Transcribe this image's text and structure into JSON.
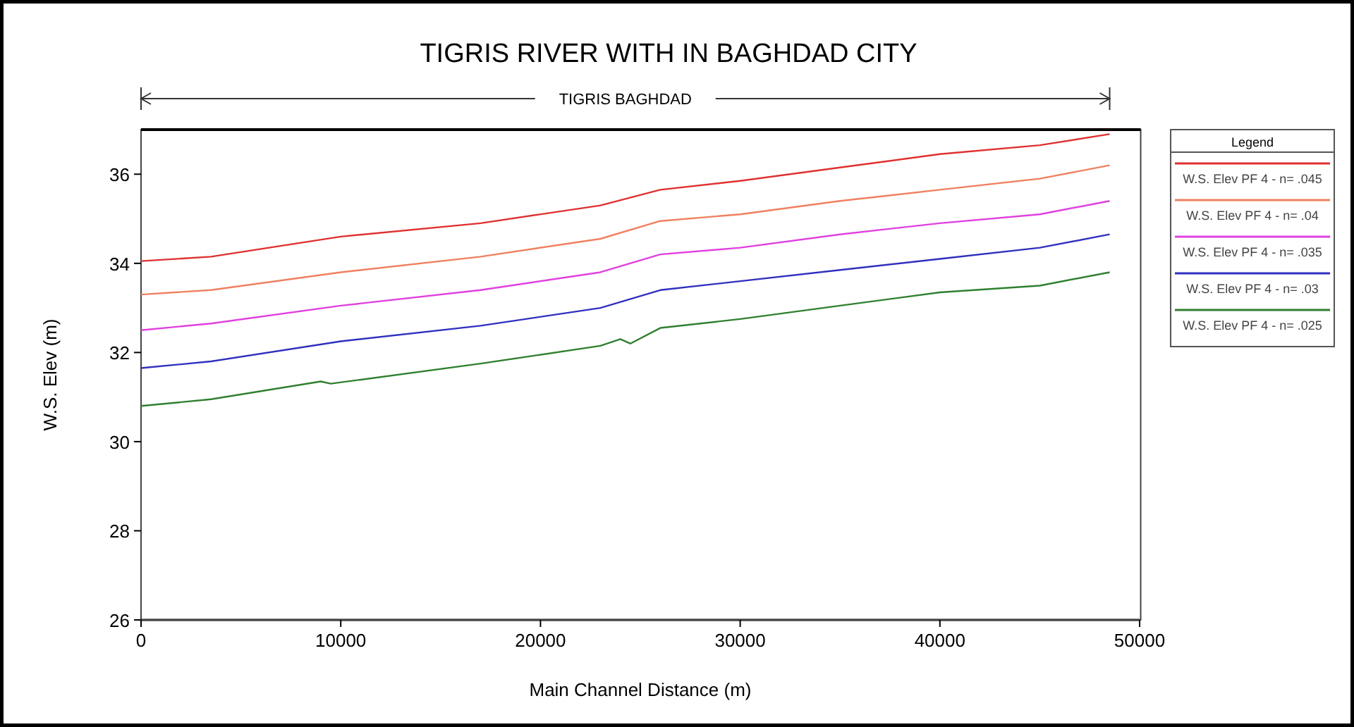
{
  "chart_data": {
    "type": "line",
    "title": "TIGRIS RIVER WITH IN BAGHDAD CITY",
    "xlabel": "Main Channel Distance (m)",
    "ylabel": "W.S. Elev (m)",
    "legend_title": "Legend",
    "legend": "right",
    "grid": false,
    "line_style": "solid",
    "marker": "none",
    "annotations": [
      "TIGRIS BAGHDAD"
    ],
    "xlim": [
      0,
      50000
    ],
    "xticks": [
      0,
      10000,
      20000,
      30000,
      40000,
      50000
    ],
    "ylim": [
      26,
      37
    ],
    "yticks": [
      26,
      28,
      30,
      32,
      34,
      36
    ],
    "x": [
      0,
      3500,
      10000,
      17000,
      23000,
      26000,
      30000,
      35000,
      40000,
      45000,
      48500
    ],
    "series": [
      {
        "name": "W.S. Elev PF 4 - n= .045",
        "color": "#e03030",
        "values": [
          34.05,
          34.15,
          34.6,
          34.9,
          35.3,
          35.65,
          35.85,
          36.15,
          36.45,
          36.65,
          36.9
        ]
      },
      {
        "name": "W.S. Elev PF 4 - n= .04",
        "color": "#f08060",
        "values": [
          33.3,
          33.4,
          33.8,
          34.15,
          34.55,
          34.95,
          35.1,
          35.4,
          35.65,
          35.9,
          36.2
        ]
      },
      {
        "name": "W.S. Elev PF 4 - n= .035",
        "color": "#e040e0",
        "values": [
          32.5,
          32.65,
          33.05,
          33.4,
          33.8,
          34.2,
          34.35,
          34.65,
          34.9,
          35.1,
          35.4
        ]
      },
      {
        "name": "W.S. Elev PF 4 - n= .03",
        "color": "#3030c0",
        "values": [
          31.65,
          31.8,
          32.25,
          32.6,
          33.0,
          33.4,
          33.6,
          33.85,
          34.1,
          34.35,
          34.65
        ]
      },
      {
        "name": "W.S. Elev PF 4 - n= .025",
        "color": "#308030",
        "x": [
          0,
          3500,
          9000,
          9500,
          17000,
          23000,
          24000,
          24500,
          26000,
          30000,
          35000,
          40000,
          45000,
          48500
        ],
        "values": [
          30.8,
          30.95,
          31.35,
          31.3,
          31.75,
          32.15,
          32.3,
          32.2,
          32.55,
          32.75,
          33.05,
          33.35,
          33.5,
          33.8
        ]
      }
    ]
  }
}
